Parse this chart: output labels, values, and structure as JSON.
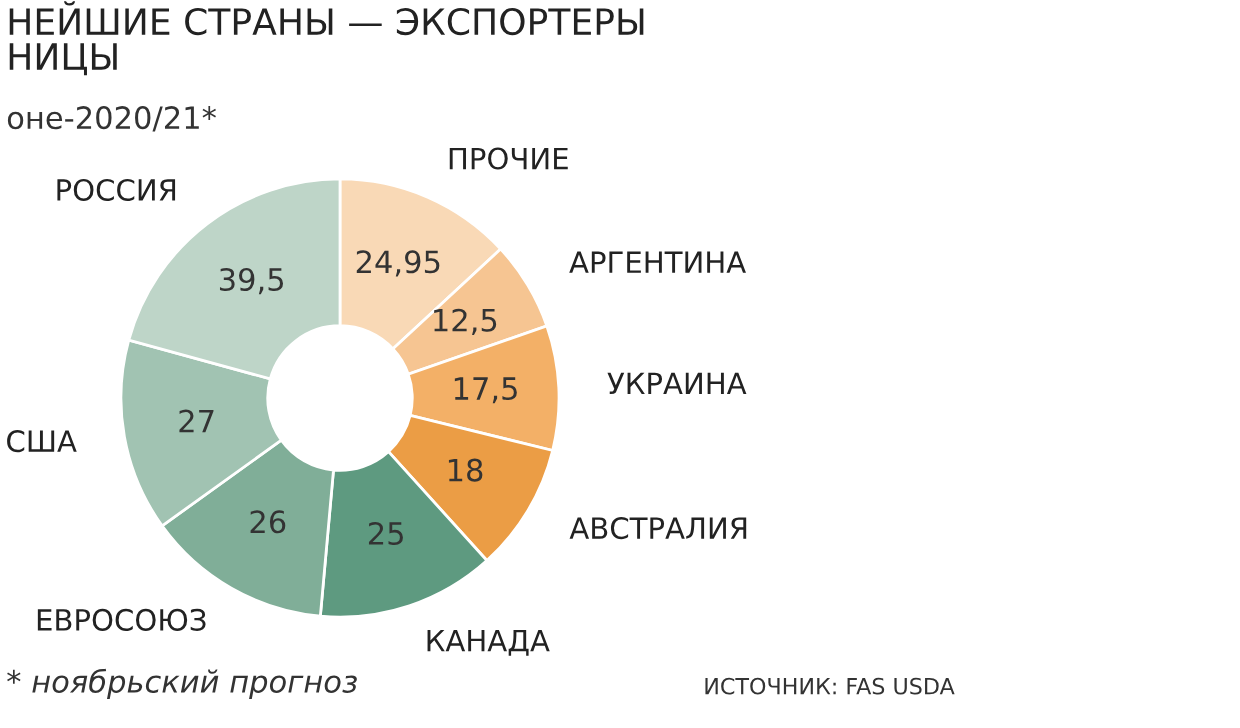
{
  "chart_data": {
    "type": "donut",
    "title": "НЕЙШИЕ СТРАНЫ — ЭКСПОРТЕРЫ\nНИЦЫ",
    "subtitle": "оне-2020/21*",
    "categories": [
      "ПРОЧИЕ",
      "АРГЕНТИНА",
      "УКРАИНА",
      "АВСТРАЛИЯ",
      "КАНАДА",
      "ЕВРОСОЮЗ",
      "США",
      "РОССИЯ"
    ],
    "values": [
      24.95,
      12.5,
      17.5,
      18,
      25,
      26,
      27,
      39.5
    ],
    "value_labels": [
      "24,95",
      "12,5",
      "17,5",
      "18",
      "25",
      "26",
      "27",
      "39,5"
    ],
    "colors": [
      "#f9d9b6",
      "#f6c592",
      "#f3b067",
      "#eb9d45",
      "#5e9a80",
      "#80ae98",
      "#a1c3b2",
      "#bed5c8"
    ],
    "annotations": [
      "* ноябрьский прогноз",
      "ИСТОЧНИК: FAS USDA"
    ]
  }
}
